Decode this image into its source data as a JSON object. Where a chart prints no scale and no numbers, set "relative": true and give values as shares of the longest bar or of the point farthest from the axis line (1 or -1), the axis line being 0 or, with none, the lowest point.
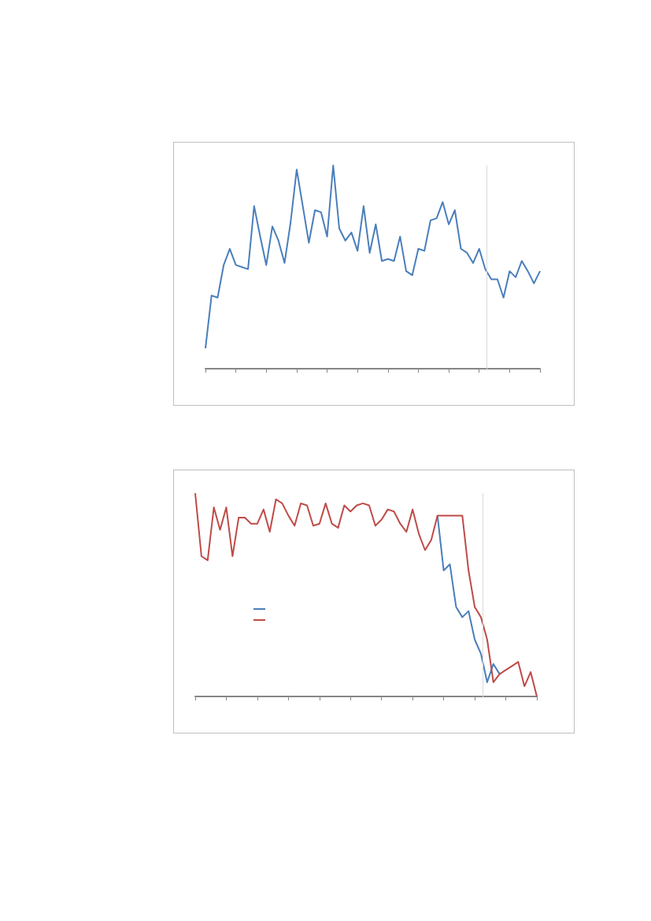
{
  "chart_data": [
    {
      "type": "line",
      "relative": true,
      "categories": [
        null,
        null,
        null,
        null,
        null,
        null,
        null,
        null,
        null,
        null,
        null,
        null,
        null,
        null,
        null,
        null,
        null,
        null,
        null,
        null,
        null,
        null,
        null,
        null,
        null,
        null,
        null,
        null,
        null,
        null,
        null,
        null,
        null,
        null,
        null,
        null,
        null,
        null,
        null,
        null,
        null,
        null,
        null,
        null,
        null,
        null,
        null,
        null,
        null,
        null,
        null,
        null,
        null,
        null,
        null,
        null
      ],
      "series": [
        {
          "color": "#4a7ebb",
          "values": [
            0.1,
            0.36,
            0.35,
            0.51,
            0.59,
            0.51,
            0.5,
            0.49,
            0.8,
            0.65,
            0.51,
            0.7,
            0.63,
            0.52,
            0.72,
            0.98,
            0.8,
            0.62,
            0.78,
            0.77,
            0.65,
            1,
            0.69,
            0.63,
            0.67,
            0.58,
            0.8,
            0.57,
            0.71,
            0.53,
            0.54,
            0.53,
            0.65,
            0.48,
            0.46,
            0.59,
            0.58,
            0.73,
            0.74,
            0.82,
            0.71,
            0.78,
            0.59,
            0.57,
            0.52,
            0.59,
            0.49,
            0.44,
            0.44,
            0.35,
            0.48,
            0.45,
            0.53,
            0.48,
            0.42,
            0.48
          ]
        }
      ],
      "grid": false
    },
    {
      "type": "line",
      "relative": true,
      "categories": [
        null,
        null,
        null,
        null,
        null,
        null,
        null,
        null,
        null,
        null,
        null,
        null,
        null,
        null,
        null,
        null,
        null,
        null,
        null,
        null,
        null,
        null,
        null,
        null,
        null,
        null,
        null,
        null,
        null,
        null,
        null,
        null,
        null,
        null,
        null,
        null,
        null,
        null,
        null,
        null,
        null,
        null,
        null,
        null,
        null,
        null,
        null,
        null,
        null,
        null,
        null,
        null,
        null,
        null,
        null,
        null
      ],
      "series": [
        {
          "color": "#4a7ebb",
          "values": [
            null,
            null,
            null,
            null,
            null,
            null,
            null,
            null,
            null,
            null,
            null,
            null,
            null,
            null,
            null,
            null,
            null,
            null,
            null,
            null,
            null,
            null,
            null,
            null,
            null,
            null,
            null,
            null,
            null,
            null,
            null,
            null,
            null,
            null,
            null,
            null,
            null,
            null,
            null,
            0.89,
            0.62,
            0.65,
            0.44,
            0.39,
            0.42,
            0.28,
            0.21,
            0.07,
            0.16,
            0.11,
            null,
            null,
            null,
            null,
            null,
            null
          ]
        },
        {
          "color": "#be4b48",
          "values": [
            1,
            0.69,
            0.67,
            0.93,
            0.82,
            0.93,
            0.69,
            0.88,
            0.88,
            0.85,
            0.85,
            0.92,
            0.81,
            0.97,
            0.95,
            0.89,
            0.84,
            0.95,
            0.94,
            0.84,
            0.85,
            0.95,
            0.85,
            0.83,
            0.94,
            0.91,
            0.94,
            0.95,
            0.94,
            0.84,
            0.87,
            0.92,
            0.91,
            0.85,
            0.81,
            0.92,
            0.8,
            0.72,
            0.77,
            0.89,
            0.89,
            0.89,
            0.89,
            0.89,
            0.62,
            0.44,
            0.39,
            0.28,
            0.07,
            0.11,
            0.13,
            0.15,
            0.17,
            0.05,
            0.12,
            0
          ]
        }
      ],
      "grid": false
    }
  ]
}
